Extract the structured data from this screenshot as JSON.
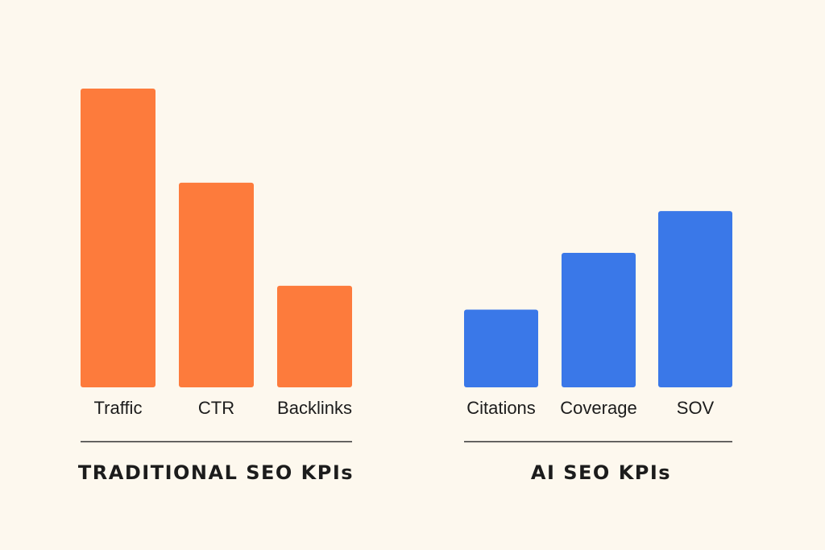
{
  "chart_data": [
    {
      "type": "bar",
      "title": "TRADITIONAL SEO KPIs",
      "categories": [
        "Traffic",
        "CTR",
        "Backlinks"
      ],
      "values": [
        100,
        68.5,
        34
      ],
      "ylim": [
        0,
        100
      ],
      "color": "#fd7b3c",
      "grid": false,
      "legend": "none"
    },
    {
      "type": "bar",
      "title": "AI SEO KPIs",
      "categories": [
        "Citations",
        "Coverage",
        "SOV"
      ],
      "values": [
        26,
        45,
        59
      ],
      "ylim": [
        0,
        100
      ],
      "color": "#3a78e8",
      "grid": false,
      "legend": "none"
    }
  ],
  "colors": {
    "background": "#fdf8ee",
    "text": "#1c1c1c",
    "divider": "#333333"
  }
}
